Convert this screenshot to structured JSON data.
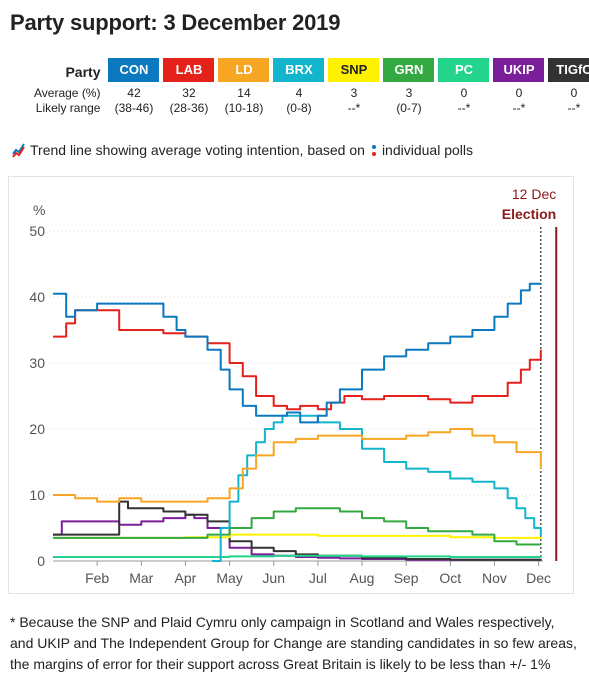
{
  "title": "Party support: 3 December 2019",
  "table": {
    "party_header": "Party",
    "average_label": "Average (%)",
    "range_label": "Likely range",
    "parties": [
      {
        "name": "CON",
        "color": "#0a79bf",
        "text_color": "#ffffff",
        "average": "42",
        "range": "(38-46)"
      },
      {
        "name": "LAB",
        "color": "#e4211b",
        "text_color": "#ffffff",
        "average": "32",
        "range": "(28-36)"
      },
      {
        "name": "LD",
        "color": "#f6a623",
        "text_color": "#ffffff",
        "average": "14",
        "range": "(10-18)"
      },
      {
        "name": "BRX",
        "color": "#12b5cb",
        "text_color": "#ffffff",
        "average": "4",
        "range": "(0-8)"
      },
      {
        "name": "SNP",
        "color": "#fff200",
        "text_color": "#222222",
        "average": "3",
        "range": "--*"
      },
      {
        "name": "GRN",
        "color": "#34a941",
        "text_color": "#ffffff",
        "average": "3",
        "range": "(0-7)"
      },
      {
        "name": "PC",
        "color": "#22d48c",
        "text_color": "#ffffff",
        "average": "0",
        "range": "--*"
      },
      {
        "name": "UKIP",
        "color": "#7a1f99",
        "text_color": "#ffffff",
        "average": "0",
        "range": "--*"
      },
      {
        "name": "TIGfC",
        "color": "#333333",
        "text_color": "#ffffff",
        "average": "0",
        "range": "--*"
      }
    ]
  },
  "legend": {
    "line_text": "Trend line showing average voting intention, based on",
    "dots_text": "individual polls"
  },
  "footnote": "* Because the SNP and Plaid Cymru only campaign in Scotland and Wales respectively, and UKIP and The Independent Group for Change are standing candidates in so few areas, the margins of error for their support across Great Britain is likely to be less than +/- 1%",
  "chart_data": {
    "type": "line",
    "ylabel": "%",
    "ylim": [
      0,
      50
    ],
    "yticks": [
      0,
      10,
      20,
      30,
      40,
      50
    ],
    "xlim": [
      0,
      11.1
    ],
    "xticks": [
      {
        "label": "Feb",
        "x": 1
      },
      {
        "label": "Mar",
        "x": 2
      },
      {
        "label": "Apr",
        "x": 3
      },
      {
        "label": "May",
        "x": 4
      },
      {
        "label": "Jun",
        "x": 5
      },
      {
        "label": "Jul",
        "x": 6
      },
      {
        "label": "Aug",
        "x": 7
      },
      {
        "label": "Sep",
        "x": 8
      },
      {
        "label": "Oct",
        "x": 9
      },
      {
        "label": "Nov",
        "x": 10
      },
      {
        "label": "Dec",
        "x": 11
      }
    ],
    "grid": true,
    "annotation": {
      "date_label": "12 Dec",
      "event_label": "Election",
      "x": 11.4,
      "color": "#8b1a1a"
    },
    "series": [
      {
        "name": "UKIP",
        "color": "#7a1f99",
        "x": [
          0,
          0.2,
          0.5,
          1,
          1.5,
          2,
          2.5,
          3,
          3.2,
          3.5,
          4,
          4.5,
          5,
          5.5,
          6,
          6.5,
          7,
          8,
          9,
          10,
          11.05
        ],
        "y": [
          4,
          6,
          6,
          6,
          5.5,
          6,
          6.5,
          7,
          6.5,
          5,
          2,
          1,
          0.8,
          0.6,
          0.5,
          0.4,
          0.3,
          0.2,
          0.2,
          0.2,
          0.2
        ]
      },
      {
        "name": "TIGfC",
        "color": "#333333",
        "x": [
          0,
          1,
          1.5,
          1.7,
          2,
          2.5,
          3,
          3.5,
          4,
          4.5,
          5,
          5.5,
          6,
          7,
          8,
          9,
          10,
          11.05
        ],
        "y": [
          4,
          4,
          9,
          8,
          8,
          7.5,
          7,
          6,
          3,
          2,
          1.5,
          1,
          0.8,
          0.5,
          0.3,
          0.2,
          0.2,
          0.1
        ]
      },
      {
        "name": "PC",
        "color": "#22d48c",
        "x": [
          0,
          1,
          2,
          3,
          4,
          5,
          6,
          7,
          8,
          9,
          10,
          11.05
        ],
        "y": [
          0.6,
          0.6,
          0.6,
          0.6,
          0.7,
          0.8,
          0.8,
          0.7,
          0.7,
          0.6,
          0.6,
          0.5
        ]
      },
      {
        "name": "SNP",
        "color": "#fff200",
        "x": [
          0,
          1,
          2,
          3,
          4,
          5,
          6,
          7,
          8,
          9,
          10,
          11.05
        ],
        "y": [
          3.5,
          3.5,
          3.5,
          3.6,
          4,
          4,
          3.8,
          3.8,
          3.8,
          3.6,
          3.5,
          3.3
        ]
      },
      {
        "name": "GRN",
        "color": "#34a941",
        "x": [
          0,
          0.5,
          1,
          2,
          3,
          3.5,
          4,
          4.5,
          5,
          5.5,
          6,
          6.5,
          7,
          7.5,
          8,
          8.5,
          9,
          9.5,
          10,
          10.5,
          11.05
        ],
        "y": [
          3.5,
          3.5,
          3.5,
          3.5,
          3.5,
          4,
          5,
          6.5,
          7.5,
          8,
          8,
          7.5,
          6.5,
          6,
          5,
          4.5,
          4.5,
          4,
          3,
          2.5,
          2.5
        ]
      },
      {
        "name": "BRX",
        "color": "#12b5cb",
        "x": [
          3.6,
          3.8,
          4,
          4.2,
          4.4,
          4.6,
          4.8,
          5,
          5.2,
          5.5,
          6,
          6.5,
          7,
          7.5,
          8,
          8.5,
          9,
          9.5,
          10,
          10.3,
          10.5,
          10.7,
          10.9,
          11.05
        ],
        "y": [
          0,
          5,
          9,
          13,
          16,
          18,
          20,
          21,
          22,
          22,
          21,
          20,
          17,
          15,
          14,
          13.5,
          12.5,
          12,
          11,
          9.5,
          8,
          6.5,
          5,
          3.8
        ]
      },
      {
        "name": "LD",
        "color": "#f6a623",
        "x": [
          0,
          0.5,
          1,
          1.5,
          2,
          2.5,
          3,
          3.5,
          4,
          4.3,
          4.6,
          5,
          5.5,
          6,
          6.5,
          7,
          7.5,
          8,
          8.5,
          9,
          9.5,
          10,
          10.5,
          11.05
        ],
        "y": [
          10,
          9.5,
          9,
          9.5,
          9,
          9,
          9,
          9.5,
          11,
          14,
          16,
          18,
          18.5,
          19,
          19,
          18.5,
          18.5,
          19,
          19.5,
          20,
          19,
          18,
          16.5,
          14
        ]
      },
      {
        "name": "LAB",
        "color": "#e4211b",
        "x": [
          0,
          0.3,
          0.5,
          1,
          1.5,
          2,
          2.5,
          3,
          3.5,
          4,
          4.3,
          4.6,
          5,
          5.3,
          5.6,
          6,
          6.3,
          6.6,
          7,
          7.5,
          8,
          8.5,
          9,
          9.5,
          10,
          10.3,
          10.6,
          10.8,
          11.05
        ],
        "y": [
          34,
          36,
          38,
          38,
          35,
          35,
          34.5,
          34,
          33,
          30,
          28,
          25,
          23.5,
          23,
          23.5,
          23,
          24,
          25,
          24.5,
          25,
          25,
          24.5,
          24,
          25,
          25,
          27,
          29,
          30.5,
          32
        ]
      },
      {
        "name": "CON",
        "color": "#0a79bf",
        "x": [
          0,
          0.3,
          0.5,
          1,
          1.5,
          2,
          2.5,
          2.8,
          3,
          3.5,
          3.8,
          4,
          4.3,
          4.6,
          5,
          5.3,
          5.6,
          6,
          6.2,
          6.5,
          7,
          7.5,
          8,
          8.5,
          9,
          9.5,
          10,
          10.3,
          10.6,
          10.8,
          11.05
        ],
        "y": [
          40.5,
          37,
          38,
          39,
          39,
          39,
          37,
          35,
          34,
          32,
          29,
          26,
          23.5,
          22,
          22,
          22.5,
          21,
          22,
          24,
          26,
          29,
          31,
          32,
          33,
          34,
          35,
          37,
          39,
          41,
          42,
          42
        ]
      }
    ]
  }
}
